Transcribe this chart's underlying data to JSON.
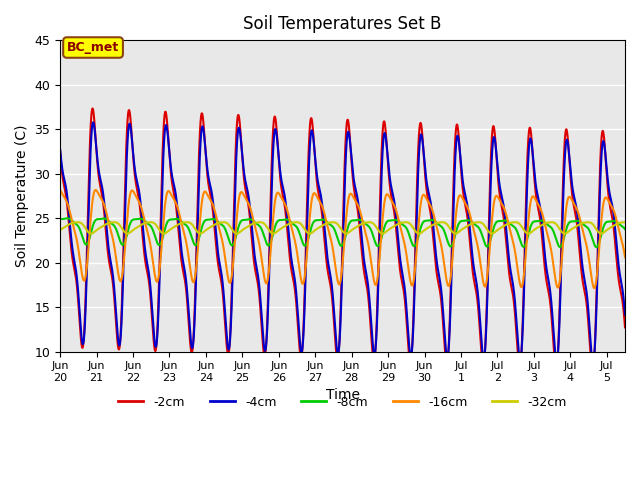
{
  "title": "Soil Temperatures Set B",
  "xlabel": "Time",
  "ylabel": "Soil Temperature (C)",
  "ylim": [
    10,
    45
  ],
  "background_color": "#ffffff",
  "plot_bg_color": "#e8e8e8",
  "grid_color": "#ffffff",
  "annotation_text": "BC_met",
  "annotation_bg": "#ffff00",
  "annotation_border": "#8B4513",
  "legend_entries": [
    "-2cm",
    "-4cm",
    "-8cm",
    "-16cm",
    "-32cm"
  ],
  "line_colors": [
    "#dd0000",
    "#0000cc",
    "#00cc00",
    "#ff8800",
    "#cccc00"
  ],
  "line_widths": [
    1.5,
    1.5,
    1.5,
    1.5,
    1.5
  ],
  "xtick_labels": [
    "Jun 20",
    "Jun 21",
    "Jun 22",
    "Jun 23",
    "Jun 24",
    "Jun 25",
    "Jun 26",
    "Jun 27",
    "Jun 28",
    "Jun 29",
    "Jun 30",
    "Jul 1",
    "Jul 2",
    "Jul 3",
    "Jul 4",
    "Jul 5"
  ],
  "mean_temp": 24.0,
  "period_hours": 24,
  "n_days": 15.5,
  "points_per_day": 288,
  "depths_params": [
    {
      "amp": 10.5,
      "phase": 0.0,
      "amp2": 4.5,
      "phase2": 0.0,
      "amp3": 2.0,
      "phase3": 0.0,
      "trend": -0.18
    },
    {
      "amp": 10.0,
      "phase": 0.15,
      "amp2": 4.0,
      "phase2": 0.15,
      "amp3": 1.8,
      "phase3": 0.15,
      "trend": -0.15
    },
    {
      "amp": 1.3,
      "phase": 1.2,
      "amp2": 0.5,
      "phase2": 1.2,
      "amp3": 0.2,
      "phase3": 1.2,
      "trend": -0.02
    },
    {
      "amp": 4.5,
      "phase": 0.6,
      "amp2": 1.5,
      "phase2": 0.6,
      "amp3": 0.5,
      "phase3": 0.6,
      "trend": -0.06
    },
    {
      "amp": 0.6,
      "phase": 2.5,
      "amp2": 0.15,
      "phase2": 2.5,
      "amp3": 0.05,
      "phase3": 2.5,
      "trend": 0.0
    }
  ]
}
